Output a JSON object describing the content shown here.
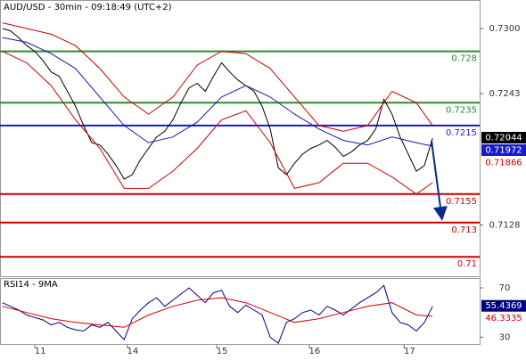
{
  "chart_data": [
    {
      "type": "line",
      "title": "AUD/USD - 30min - 09:18:49 (UTC+2)",
      "xlim": [
        -0.3,
        58.8
      ],
      "xticks": [
        {
          "value": 4,
          "label": "11"
        },
        {
          "value": 15.4,
          "label": "14"
        },
        {
          "value": 26.4,
          "label": "15"
        },
        {
          "value": 37.8,
          "label": "16"
        },
        {
          "value": 49.5,
          "label": "17"
        }
      ],
      "ylim": [
        0.7083,
        0.7325
      ],
      "yticks": [
        {
          "value": 0.73,
          "label": "0.7300"
        },
        0.7243,
        0.7128
      ],
      "series": [
        {
          "name": "Price",
          "color": "#000000",
          "values": [
            0.73,
            0.7298,
            0.7292,
            0.7285,
            0.728,
            0.7272,
            0.7262,
            0.7258,
            0.7245,
            0.7232,
            0.7215,
            0.72,
            0.7198,
            0.719,
            0.718,
            0.7168,
            0.7172,
            0.7185,
            0.7195,
            0.7205,
            0.721,
            0.722,
            0.7235,
            0.7248,
            0.7252,
            0.7245,
            0.7258,
            0.727,
            0.7262,
            0.7255,
            0.725,
            0.7245,
            0.7232,
            0.7212,
            0.7178,
            0.7172,
            0.7182,
            0.719,
            0.7195,
            0.7198,
            0.7202,
            0.7196,
            0.7188,
            0.7192,
            0.7198,
            0.7202,
            0.7212,
            0.7238,
            0.7225,
            0.7205,
            0.719,
            0.7175,
            0.718,
            0.7204
          ]
        },
        {
          "name": "MA",
          "color": "#1a1aa8",
          "x": [
            0,
            3,
            6,
            9,
            12,
            15,
            18,
            21,
            24,
            27,
            30,
            33,
            36,
            39,
            42,
            45,
            48,
            51,
            53
          ],
          "values": [
            0.7292,
            0.7288,
            0.7278,
            0.7265,
            0.724,
            0.7215,
            0.72,
            0.7205,
            0.7218,
            0.724,
            0.725,
            0.724,
            0.7225,
            0.7212,
            0.7202,
            0.7198,
            0.7205,
            0.72,
            0.7197
          ]
        },
        {
          "name": "Upper",
          "color": "#cc0000",
          "x": [
            0,
            3,
            6,
            9,
            12,
            15,
            18,
            21,
            24,
            27,
            30,
            33,
            36,
            39,
            42,
            45,
            48,
            51,
            53
          ],
          "values": [
            0.7305,
            0.73,
            0.7295,
            0.7285,
            0.7265,
            0.724,
            0.7225,
            0.724,
            0.7268,
            0.728,
            0.7278,
            0.7265,
            0.724,
            0.7215,
            0.721,
            0.7215,
            0.7245,
            0.7235,
            0.7215
          ]
        },
        {
          "name": "Lower",
          "color": "#cc0000",
          "x": [
            0,
            3,
            6,
            9,
            12,
            15,
            18,
            21,
            24,
            27,
            30,
            33,
            36,
            39,
            42,
            45,
            48,
            51,
            53
          ],
          "values": [
            0.728,
            0.727,
            0.725,
            0.722,
            0.7195,
            0.716,
            0.716,
            0.7175,
            0.7195,
            0.722,
            0.7228,
            0.72,
            0.716,
            0.7165,
            0.7182,
            0.7182,
            0.717,
            0.7155,
            0.7165
          ]
        }
      ],
      "levels": [
        {
          "value": 0.728,
          "color": "#2e8b2e"
        },
        {
          "value": 0.7235,
          "color": "#2e8b2e"
        },
        {
          "value": 0.7215,
          "color": "#1a1acc"
        },
        {
          "value": 0.7155,
          "color": "#cc0000"
        },
        {
          "value": 0.713,
          "color": "#cc0000"
        },
        {
          "value": 0.71,
          "color": "#cc0000"
        }
      ],
      "price_labels": [
        {
          "value": 0.72044,
          "color": "#000000"
        },
        {
          "value": 0.71972,
          "color": "#1a1acc"
        },
        {
          "value": 0.71866,
          "color": "#cc0000"
        }
      ]
    },
    {
      "type": "line",
      "title": "RSI14 - 9MA",
      "xlim": [
        -0.3,
        58.8
      ],
      "ylim": [
        18,
        78
      ],
      "yticks": [
        70,
        30
      ],
      "series": [
        {
          "name": "RSI",
          "color": "#000080",
          "values": [
            58,
            55,
            52,
            48,
            46,
            44,
            40,
            42,
            38,
            36,
            35,
            40,
            38,
            42,
            35,
            28,
            45,
            52,
            58,
            62,
            55,
            60,
            65,
            70,
            64,
            58,
            66,
            68,
            55,
            50,
            56,
            52,
            48,
            30,
            25,
            42,
            45,
            50,
            52,
            48,
            55,
            52,
            48,
            53,
            58,
            62,
            66,
            72,
            50,
            42,
            40,
            35,
            42,
            55
          ]
        },
        {
          "name": "MA",
          "color": "#cc0000",
          "x": [
            0,
            3,
            6,
            9,
            12,
            15,
            18,
            21,
            24,
            27,
            30,
            33,
            36,
            39,
            42,
            45,
            48,
            51,
            53
          ],
          "values": [
            55,
            50,
            45,
            42,
            40,
            38,
            48,
            55,
            60,
            62,
            58,
            50,
            42,
            45,
            50,
            55,
            58,
            48,
            47
          ]
        }
      ],
      "price_labels": [
        {
          "value": 55.4369,
          "color": "#000080"
        },
        {
          "value": 46.3335,
          "color": "#cc0000"
        }
      ]
    }
  ]
}
